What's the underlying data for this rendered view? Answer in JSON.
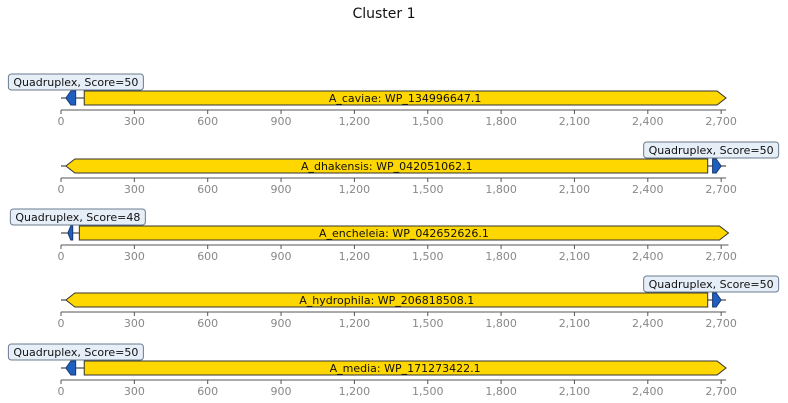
{
  "title": "Cluster 1",
  "colors": {
    "gene_fill": "#ffd700",
    "feature_fill": "#1f5fbf",
    "label_bg": "#e6eef8",
    "label_border": "#6b7b8c",
    "axis": "#555555",
    "tick_label": "#888888"
  },
  "axis": {
    "tick_values": [
      0,
      300,
      600,
      900,
      1200,
      1500,
      1800,
      2100,
      2400,
      2700
    ],
    "tick_labels": [
      "0",
      "300",
      "600",
      "900",
      "1,200",
      "1,500",
      "1,800",
      "2,100",
      "2,400",
      "2,700"
    ]
  },
  "tracks": [
    {
      "gene_label": "A_caviae: WP_134996647.1",
      "seq_length": 2720,
      "gene": {
        "start": 95,
        "end": 2720,
        "strand": "+"
      },
      "feature": {
        "start": 20,
        "end": 60,
        "strand": "-",
        "label": "Quadruplex, Score=50",
        "label_side": "left"
      }
    },
    {
      "gene_label": "A_dhakensis: WP_042051062.1",
      "seq_length": 2720,
      "gene": {
        "start": 20,
        "end": 2645,
        "strand": "-"
      },
      "feature": {
        "start": 2665,
        "end": 2700,
        "strand": "+",
        "label": "Quadruplex, Score=50",
        "label_side": "right"
      }
    },
    {
      "gene_label": "A_encheleia: WP_042652626.1",
      "seq_length": 2730,
      "gene": {
        "start": 75,
        "end": 2730,
        "strand": "+"
      },
      "feature": {
        "start": 28,
        "end": 48,
        "strand": "-",
        "label": "Quadruplex, Score=48",
        "label_side": "left"
      }
    },
    {
      "gene_label": "A_hydrophila: WP_206818508.1",
      "seq_length": 2720,
      "gene": {
        "start": 20,
        "end": 2645,
        "strand": "-"
      },
      "feature": {
        "start": 2665,
        "end": 2700,
        "strand": "+",
        "label": "Quadruplex, Score=50",
        "label_side": "right"
      }
    },
    {
      "gene_label": "A_media: WP_171273422.1",
      "seq_length": 2720,
      "gene": {
        "start": 95,
        "end": 2720,
        "strand": "+"
      },
      "feature": {
        "start": 20,
        "end": 60,
        "strand": "-",
        "label": "Quadruplex, Score=50",
        "label_side": "left"
      }
    }
  ]
}
